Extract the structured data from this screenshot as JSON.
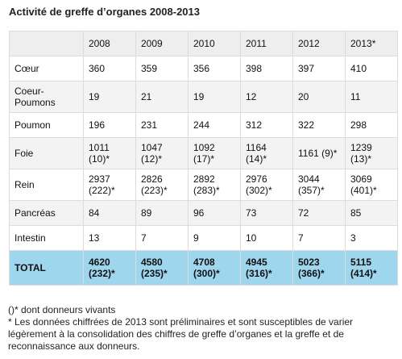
{
  "title": "Activité de greffe d’organes 2008-2013",
  "table": {
    "headers": [
      "",
      "2008",
      "2009",
      "2010",
      "2011",
      "2012",
      "2013*"
    ],
    "rows": [
      {
        "label": "Cœur",
        "cells": [
          "360",
          "359",
          "356",
          "398",
          "397",
          "410"
        ]
      },
      {
        "label": "Coeur-\nPoumons",
        "cells": [
          "19",
          "21",
          "19",
          "12",
          "20",
          "11"
        ]
      },
      {
        "label": "Poumon",
        "cells": [
          "196",
          "231",
          "244",
          "312",
          "322",
          "298"
        ]
      },
      {
        "label": "Foie",
        "cells": [
          "1011\n(10)*",
          "1047\n(12)*",
          "1092\n(17)*",
          "1164\n(14)*",
          "1161 (9)*",
          "1239\n(13)*"
        ]
      },
      {
        "label": "Rein",
        "cells": [
          "2937\n(222)*",
          "2826\n(223)*",
          "2892\n(283)*",
          "2976\n(302)*",
          "3044\n(357)*",
          "3069\n(401)*"
        ]
      },
      {
        "label": "Pancréas",
        "cells": [
          "84",
          "89",
          "96",
          "73",
          "72",
          "85"
        ]
      },
      {
        "label": "Intestin",
        "cells": [
          "13",
          "7",
          "9",
          "10",
          "7",
          "3"
        ]
      }
    ],
    "total": {
      "label": "TOTAL",
      "cells": [
        "4620\n(232)*",
        "4580\n(235)*",
        "4708\n(300)*",
        "4945\n(316)*",
        "5023\n(366)*",
        "5115\n(414)*"
      ]
    }
  },
  "notes": {
    "line1": "()* dont donneurs vivants",
    "line2": "* Les données chiffrées de 2013 sont préliminaires et sont susceptibles de varier légèrement à la consolidation des chiffres de greffe d’organes et la greffe et de reconnaissance aux donneurs."
  }
}
